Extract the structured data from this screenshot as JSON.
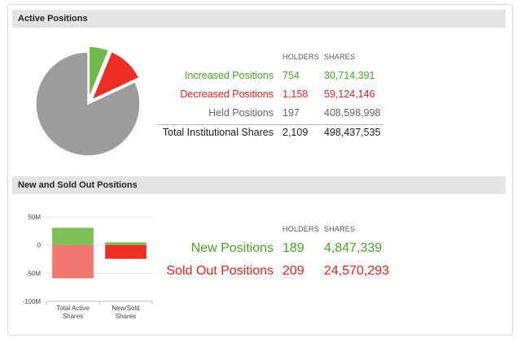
{
  "active": {
    "title": "Active Positions",
    "col_holders": "HOLDERS",
    "col_shares": "SHARES",
    "rows": [
      {
        "label": "Increased Positions",
        "holders": "754",
        "shares": "30,714,391"
      },
      {
        "label": "Decreased Positions",
        "holders": "1,158",
        "shares": "59,124,146"
      },
      {
        "label": "Held Positions",
        "holders": "197",
        "shares": "408,598,998"
      },
      {
        "label": "Total Institutional Shares",
        "holders": "2,109",
        "shares": "498,437,535"
      }
    ]
  },
  "newsold": {
    "title": "New and Sold Out Positions",
    "col_holders": "HOLDERS",
    "col_shares": "SHARES",
    "rows": [
      {
        "label": "New Positions",
        "holders": "189",
        "shares": "4,847,339"
      },
      {
        "label": "Sold Out Positions",
        "holders": "209",
        "shares": "24,570,293"
      }
    ]
  },
  "colors": {
    "green": "#7dc156",
    "red": "#ee2e24",
    "gray": "#9c9c9c",
    "light_red": "#f07870",
    "dark_green": "#4aa32b"
  },
  "chart_data": [
    {
      "type": "pie",
      "slices": [
        {
          "name": "Increased Positions",
          "value": 30714391,
          "color": "#6fb94b",
          "exploded": true
        },
        {
          "name": "Decreased Positions",
          "value": 59124146,
          "color": "#ee2e24",
          "exploded": true
        },
        {
          "name": "Held Positions",
          "value": 408598998,
          "color": "#9c9c9c",
          "exploded": false
        }
      ]
    },
    {
      "type": "bar",
      "stacked": true,
      "categories": [
        "Total Active Shares",
        "New/Sold Shares"
      ],
      "category_lines": [
        [
          "Total Active",
          "Shares"
        ],
        [
          "New/Sold",
          "Shares"
        ]
      ],
      "ytick_labels": [
        "50M",
        "0",
        "-50M",
        "-100M"
      ],
      "yticks": [
        50,
        0,
        -50,
        -100
      ],
      "ylim": [
        -100,
        50
      ],
      "series": [
        {
          "values": [
            30.71,
            4.85
          ],
          "color": "#7dc156"
        },
        {
          "values": [
            -59.12,
            -24.57
          ],
          "color": "#f07870"
        }
      ],
      "grid": true
    }
  ]
}
